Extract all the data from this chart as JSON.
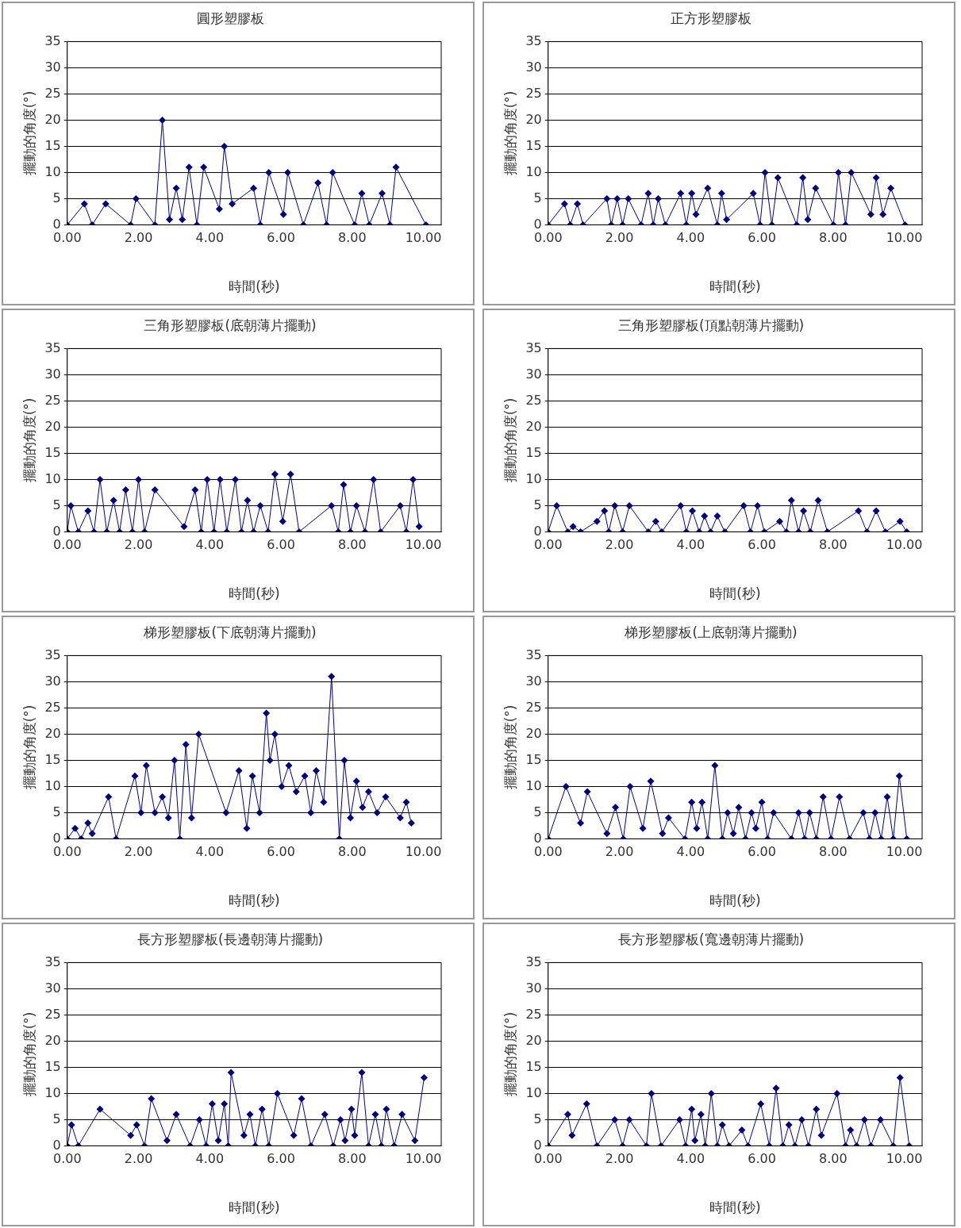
{
  "chart_data": [
    {
      "type": "line",
      "title": "圓形塑膠板",
      "xlabel": "時間(秒)",
      "ylabel": "擺動的角度(°)",
      "marker": "diamond",
      "line_style": "solid",
      "grid": "y",
      "xlim": [
        0,
        10.5
      ],
      "xticks": [
        {
          "value": 0,
          "label": "0.00"
        },
        {
          "value": 2,
          "label": "2.00"
        },
        {
          "value": 4,
          "label": "4.00"
        },
        {
          "value": 6,
          "label": "6.00"
        },
        {
          "value": 8,
          "label": "8.00"
        },
        {
          "value": 10,
          "label": "10.00"
        }
      ],
      "ylim": [
        0,
        35
      ],
      "yticks": [
        0,
        5,
        10,
        15,
        20,
        25,
        30,
        35
      ],
      "series": [
        {
          "color": "#000080",
          "x": [
            0,
            0.48,
            0.7,
            1.08,
            1.78,
            1.93,
            2.46,
            2.67,
            2.87,
            3.06,
            3.23,
            3.42,
            3.64,
            3.83,
            4.27,
            4.41,
            4.63,
            5.23,
            5.42,
            5.66,
            6.07,
            6.19,
            6.63,
            7.04,
            7.28,
            7.45,
            8.07,
            8.27,
            8.48,
            8.84,
            9.06,
            9.23,
            10.07
          ],
          "values": [
            0,
            4,
            0,
            4,
            0,
            5,
            0,
            20,
            1,
            7,
            1,
            11,
            0,
            11,
            3,
            15,
            4,
            7,
            0,
            10,
            2,
            10,
            0,
            8,
            0,
            10,
            0,
            6,
            0,
            6,
            0,
            11,
            0
          ]
        }
      ]
    },
    {
      "type": "line",
      "title": "正方形塑膠板",
      "xlabel": "時間(秒)",
      "ylabel": "擺動的角度(°)",
      "marker": "diamond",
      "line_style": "solid",
      "grid": "y",
      "xlim": [
        0,
        10.5
      ],
      "xticks": [
        {
          "value": 0,
          "label": "0.00"
        },
        {
          "value": 2,
          "label": "2.00"
        },
        {
          "value": 4,
          "label": "4.00"
        },
        {
          "value": 6,
          "label": "6.00"
        },
        {
          "value": 8,
          "label": "8.00"
        },
        {
          "value": 10,
          "label": "10.00"
        }
      ],
      "ylim": [
        0,
        35
      ],
      "yticks": [
        0,
        5,
        10,
        15,
        20,
        25,
        30,
        35
      ],
      "series": [
        {
          "color": "#000080",
          "x": [
            0,
            0.46,
            0.62,
            0.82,
            0.98,
            1.65,
            1.77,
            1.94,
            2.09,
            2.25,
            2.61,
            2.81,
            2.95,
            3.09,
            3.29,
            3.72,
            3.88,
            4.03,
            4.15,
            4.48,
            4.75,
            4.87,
            5.01,
            5.76,
            5.95,
            6.09,
            6.28,
            6.45,
            6.98,
            7.15,
            7.29,
            7.51,
            8.01,
            8.15,
            8.35,
            8.51,
            9.06,
            9.21,
            9.4,
            9.62,
            10.02
          ],
          "values": [
            0,
            4,
            0,
            4,
            0,
            5,
            0,
            5,
            0,
            5,
            0,
            6,
            0,
            5,
            0,
            6,
            0,
            6,
            2,
            7,
            0,
            6,
            1,
            6,
            0,
            10,
            0,
            9,
            0,
            9,
            1,
            7,
            0,
            10,
            0,
            10,
            2,
            9,
            2,
            7,
            0
          ]
        }
      ]
    },
    {
      "type": "line",
      "title": "三角形塑膠板(底朝薄片擺動)",
      "xlabel": "時間(秒)",
      "ylabel": "擺動的角度(°)",
      "marker": "diamond",
      "line_style": "solid",
      "grid": "y",
      "xlim": [
        0,
        10.5
      ],
      "xticks": [
        {
          "value": 0,
          "label": "0.00"
        },
        {
          "value": 2,
          "label": "2.00"
        },
        {
          "value": 4,
          "label": "4.00"
        },
        {
          "value": 6,
          "label": "6.00"
        },
        {
          "value": 8,
          "label": "8.00"
        },
        {
          "value": 10,
          "label": "10.00"
        }
      ],
      "ylim": [
        0,
        35
      ],
      "yticks": [
        0,
        5,
        10,
        15,
        20,
        25,
        30,
        35
      ],
      "series": [
        {
          "color": "#000080",
          "x": [
            0,
            0.1,
            0.31,
            0.58,
            0.75,
            0.92,
            1.11,
            1.3,
            1.47,
            1.64,
            1.83,
            2.0,
            2.17,
            2.46,
            3.28,
            3.59,
            3.76,
            3.93,
            4.12,
            4.29,
            4.48,
            4.72,
            4.89,
            5.06,
            5.23,
            5.42,
            5.64,
            5.83,
            6.05,
            6.27,
            6.51,
            7.42,
            7.61,
            7.76,
            7.95,
            8.12,
            8.36,
            8.6,
            8.8,
            9.35,
            9.52,
            9.71,
            9.88
          ],
          "values": [
            0,
            5,
            0,
            4,
            0,
            10,
            0,
            6,
            0,
            8,
            0,
            10,
            0,
            8,
            1,
            8,
            0,
            10,
            0,
            10,
            0,
            10,
            0,
            6,
            0,
            5,
            0,
            11,
            2,
            11,
            0,
            5,
            0,
            9,
            0,
            5,
            0,
            10,
            0,
            5,
            0,
            10,
            1
          ]
        }
      ]
    },
    {
      "type": "line",
      "title": "三角形塑膠板(頂點朝薄片擺動)",
      "xlabel": "時間(秒)",
      "ylabel": "擺動的角度(°)",
      "marker": "diamond",
      "line_style": "solid",
      "grid": "y",
      "xlim": [
        0,
        10.5
      ],
      "xticks": [
        {
          "value": 0,
          "label": "0.00"
        },
        {
          "value": 2,
          "label": "2.00"
        },
        {
          "value": 4,
          "label": "4.00"
        },
        {
          "value": 6,
          "label": "6.00"
        },
        {
          "value": 8,
          "label": "8.00"
        },
        {
          "value": 10,
          "label": "10.00"
        }
      ],
      "ylim": [
        0,
        35
      ],
      "yticks": [
        0,
        5,
        10,
        15,
        20,
        25,
        30,
        35
      ],
      "series": [
        {
          "color": "#000080",
          "x": [
            0,
            0.24,
            0.55,
            0.7,
            0.91,
            1.37,
            1.58,
            1.7,
            1.87,
            2.09,
            2.28,
            2.81,
            3.02,
            3.19,
            3.72,
            3.88,
            4.05,
            4.24,
            4.39,
            4.56,
            4.75,
            4.96,
            5.49,
            5.68,
            5.88,
            6.07,
            6.5,
            6.69,
            6.83,
            7.03,
            7.17,
            7.36,
            7.58,
            7.84,
            8.71,
            8.95,
            9.21,
            9.47,
            9.88,
            10.07
          ],
          "values": [
            0,
            5,
            0,
            1,
            0,
            2,
            4,
            0,
            5,
            0,
            5,
            0,
            2,
            0,
            5,
            0,
            4,
            0,
            3,
            0,
            3,
            0,
            5,
            0,
            5,
            0,
            2,
            0,
            6,
            0,
            4,
            0,
            6,
            0,
            4,
            0,
            4,
            0,
            2,
            0
          ]
        }
      ]
    },
    {
      "type": "line",
      "title": "梯形塑膠板(下底朝薄片擺動)",
      "xlabel": "時間(秒)",
      "ylabel": "擺動的角度(°)",
      "marker": "diamond",
      "line_style": "solid",
      "grid": "y",
      "xlim": [
        0,
        10.5
      ],
      "xticks": [
        {
          "value": 0,
          "label": "0.00"
        },
        {
          "value": 2,
          "label": "2.00"
        },
        {
          "value": 4,
          "label": "4.00"
        },
        {
          "value": 6,
          "label": "6.00"
        },
        {
          "value": 8,
          "label": "8.00"
        },
        {
          "value": 10,
          "label": "10.00"
        }
      ],
      "ylim": [
        0,
        35
      ],
      "yticks": [
        0,
        5,
        10,
        15,
        20,
        25,
        30,
        35
      ],
      "series": [
        {
          "color": "#000080",
          "x": [
            0,
            0.22,
            0.39,
            0.58,
            0.7,
            1.16,
            1.37,
            1.9,
            2.07,
            2.22,
            2.46,
            2.67,
            2.84,
            3.01,
            3.16,
            3.33,
            3.49,
            3.69,
            4.46,
            4.82,
            5.04,
            5.2,
            5.4,
            5.59,
            5.69,
            5.83,
            6.02,
            6.22,
            6.43,
            6.67,
            6.84,
            6.99,
            7.2,
            7.42,
            7.64,
            7.78,
            7.95,
            8.12,
            8.29,
            8.46,
            8.7,
            8.94,
            9.35,
            9.52,
            9.66
          ],
          "values": [
            0,
            2,
            0,
            3,
            1,
            8,
            0,
            12,
            5,
            14,
            5,
            8,
            4,
            15,
            0,
            18,
            4,
            20,
            5,
            13,
            2,
            12,
            5,
            24,
            15,
            20,
            10,
            14,
            9,
            12,
            5,
            13,
            7,
            31,
            0,
            15,
            4,
            11,
            6,
            9,
            5,
            8,
            4,
            7,
            3
          ]
        }
      ]
    },
    {
      "type": "line",
      "title": "梯形塑膠板(上底朝薄片擺動)",
      "xlabel": "時間(秒)",
      "ylabel": "擺動的角度(°)",
      "marker": "diamond",
      "line_style": "solid",
      "grid": "y",
      "xlim": [
        0,
        10.5
      ],
      "xticks": [
        {
          "value": 0,
          "label": "0.00"
        },
        {
          "value": 2,
          "label": "2.00"
        },
        {
          "value": 4,
          "label": "4.00"
        },
        {
          "value": 6,
          "label": "6.00"
        },
        {
          "value": 8,
          "label": "8.00"
        },
        {
          "value": 10,
          "label": "10.00"
        }
      ],
      "ylim": [
        0,
        35
      ],
      "yticks": [
        0,
        5,
        10,
        15,
        20,
        25,
        30,
        35
      ],
      "series": [
        {
          "color": "#000080",
          "x": [
            0,
            0.5,
            0.91,
            1.1,
            1.65,
            1.89,
            2.11,
            2.3,
            2.66,
            2.88,
            3.21,
            3.38,
            3.84,
            4.03,
            4.17,
            4.32,
            4.48,
            4.68,
            4.89,
            5.04,
            5.2,
            5.35,
            5.54,
            5.71,
            5.83,
            6.0,
            6.16,
            6.33,
            6.83,
            7.03,
            7.2,
            7.34,
            7.53,
            7.72,
            7.94,
            8.18,
            8.46,
            8.85,
            9.02,
            9.18,
            9.35,
            9.52,
            9.69,
            9.86,
            10.07
          ],
          "values": [
            0,
            10,
            3,
            9,
            1,
            6,
            0,
            10,
            2,
            11,
            1,
            4,
            0,
            7,
            2,
            7,
            0,
            14,
            0,
            5,
            1,
            6,
            0,
            5,
            2,
            7,
            0,
            5,
            0,
            5,
            0,
            5,
            0,
            8,
            0,
            8,
            0,
            5,
            0,
            5,
            0,
            8,
            0,
            12,
            0
          ]
        }
      ]
    },
    {
      "type": "line",
      "title": "長方形塑膠板(長邊朝薄片擺動)",
      "xlabel": "時間(秒)",
      "ylabel": "擺動的角度(°)",
      "marker": "diamond",
      "line_style": "solid",
      "grid": "y",
      "xlim": [
        0,
        10.5
      ],
      "xticks": [
        {
          "value": 0,
          "label": "0.00"
        },
        {
          "value": 2,
          "label": "2.00"
        },
        {
          "value": 4,
          "label": "4.00"
        },
        {
          "value": 6,
          "label": "6.00"
        },
        {
          "value": 8,
          "label": "8.00"
        },
        {
          "value": 10,
          "label": "10.00"
        }
      ],
      "ylim": [
        0,
        35
      ],
      "yticks": [
        0,
        5,
        10,
        15,
        20,
        25,
        30,
        35
      ],
      "series": [
        {
          "color": "#000080",
          "x": [
            0,
            0.12,
            0.31,
            0.92,
            1.78,
            1.95,
            2.17,
            2.36,
            2.8,
            3.06,
            3.45,
            3.71,
            3.9,
            4.07,
            4.24,
            4.41,
            4.52,
            4.6,
            4.96,
            5.13,
            5.28,
            5.47,
            5.66,
            5.9,
            6.36,
            6.58,
            6.84,
            7.23,
            7.47,
            7.67,
            7.8,
            7.98,
            8.07,
            8.27,
            8.46,
            8.65,
            8.82,
            8.96,
            9.18,
            9.4,
            9.76,
            10.02
          ],
          "values": [
            0,
            4,
            0,
            7,
            2,
            4,
            0,
            9,
            1,
            6,
            0,
            5,
            0,
            8,
            1,
            8,
            0,
            14,
            2,
            6,
            0,
            7,
            0,
            10,
            2,
            9,
            0,
            6,
            0,
            5,
            1,
            7,
            2,
            14,
            0,
            6,
            0,
            7,
            0,
            6,
            1,
            13
          ]
        }
      ]
    },
    {
      "type": "line",
      "title": "長方形塑膠板(寬邊朝薄片擺動)",
      "xlabel": "時間(秒)",
      "ylabel": "擺動的角度(°)",
      "marker": "diamond",
      "line_style": "solid",
      "grid": "y",
      "xlim": [
        0,
        10.5
      ],
      "xticks": [
        {
          "value": 0,
          "label": "0.00"
        },
        {
          "value": 2,
          "label": "2.00"
        },
        {
          "value": 4,
          "label": "4.00"
        },
        {
          "value": 6,
          "label": "6.00"
        },
        {
          "value": 8,
          "label": "8.00"
        },
        {
          "value": 10,
          "label": "10.00"
        }
      ],
      "ylim": [
        0,
        35
      ],
      "yticks": [
        0,
        5,
        10,
        15,
        20,
        25,
        30,
        35
      ],
      "series": [
        {
          "color": "#000080",
          "x": [
            0,
            0.55,
            0.67,
            1.08,
            1.37,
            1.87,
            2.09,
            2.28,
            2.76,
            2.9,
            3.17,
            3.69,
            3.86,
            4.03,
            4.12,
            4.29,
            4.41,
            4.58,
            4.75,
            4.89,
            5.08,
            5.44,
            5.61,
            5.97,
            6.21,
            6.4,
            6.59,
            6.76,
            6.93,
            7.12,
            7.31,
            7.53,
            7.67,
            8.11,
            8.35,
            8.49,
            8.66,
            8.88,
            9.06,
            9.33,
            9.69,
            9.88,
            10.14
          ],
          "values": [
            0,
            6,
            2,
            8,
            0,
            5,
            0,
            5,
            0,
            10,
            0,
            5,
            0,
            7,
            1,
            6,
            0,
            10,
            0,
            4,
            0,
            3,
            0,
            8,
            0,
            11,
            0,
            4,
            0,
            5,
            0,
            7,
            2,
            10,
            0,
            3,
            0,
            5,
            0,
            5,
            0,
            13,
            0
          ]
        }
      ]
    }
  ]
}
